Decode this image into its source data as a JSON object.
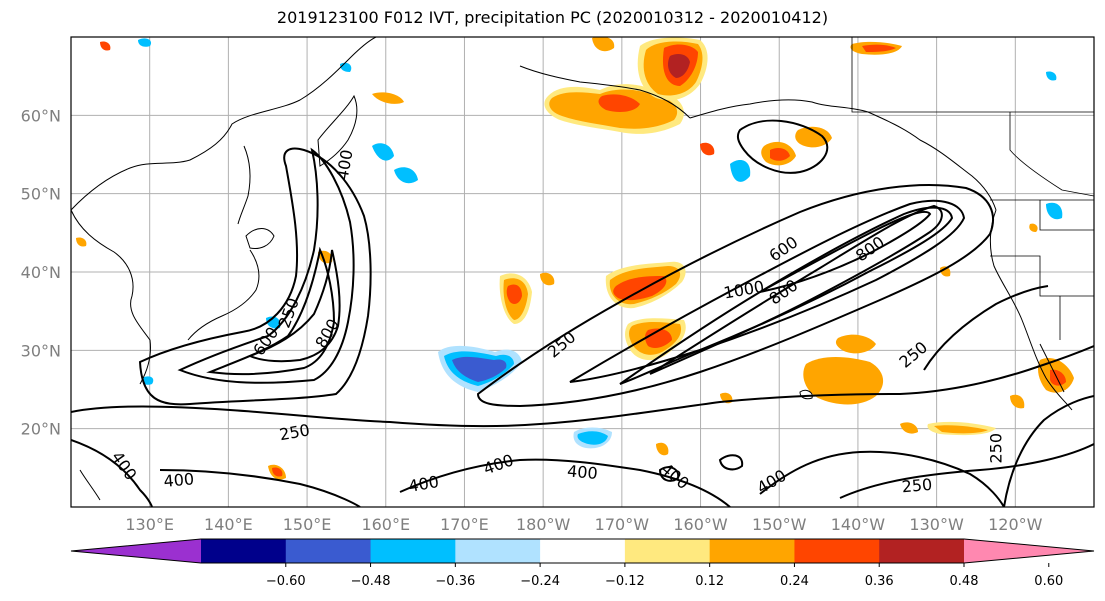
{
  "title": "2019123100 F012 IVT, precipitation PC (2020010312 - 2020010412)",
  "map": {
    "lon_range": [
      120,
      250
    ],
    "lat_range": [
      10,
      70
    ],
    "lon_ticks": [
      {
        "lon": 130,
        "label": "130°E"
      },
      {
        "lon": 140,
        "label": "140°E"
      },
      {
        "lon": 150,
        "label": "150°E"
      },
      {
        "lon": 160,
        "label": "160°E"
      },
      {
        "lon": 170,
        "label": "170°E"
      },
      {
        "lon": 180,
        "label": "180°W"
      },
      {
        "lon": 190,
        "label": "170°W"
      },
      {
        "lon": 200,
        "label": "160°W"
      },
      {
        "lon": 210,
        "label": "150°W"
      },
      {
        "lon": 220,
        "label": "140°W"
      },
      {
        "lon": 230,
        "label": "130°W"
      },
      {
        "lon": 240,
        "label": "120°W"
      }
    ],
    "lat_ticks": [
      {
        "lat": 20,
        "label": "20°N"
      },
      {
        "lat": 30,
        "label": "30°N"
      },
      {
        "lat": 40,
        "label": "40°N"
      },
      {
        "lat": 50,
        "label": "50°N"
      },
      {
        "lat": 60,
        "label": "60°N"
      }
    ],
    "contour_labels": [
      {
        "text": "250",
        "lon": 147.6,
        "lat": 34.8,
        "rot": -70
      },
      {
        "text": "600",
        "lon": 144.7,
        "lat": 31.2,
        "rot": -55
      },
      {
        "text": "800",
        "lon": 152.5,
        "lat": 32.2,
        "rot": -60
      },
      {
        "text": "400",
        "lon": 154.7,
        "lat": 53.7,
        "rot": -80
      },
      {
        "text": "250",
        "lon": 148.4,
        "lat": 19.6,
        "rot": -10
      },
      {
        "text": "400",
        "lon": 126.8,
        "lat": 15.3,
        "rot": 55
      },
      {
        "text": "400",
        "lon": 133.7,
        "lat": 13.5,
        "rot": -5
      },
      {
        "text": "400",
        "lon": 164.8,
        "lat": 13.0,
        "rot": -10
      },
      {
        "text": "400",
        "lon": 174.3,
        "lat": 15.5,
        "rot": -20
      },
      {
        "text": "400",
        "lon": 185.0,
        "lat": 14.5,
        "rot": 5
      },
      {
        "text": "400",
        "lon": 196.8,
        "lat": 14.0,
        "rot": 40
      },
      {
        "text": "400",
        "lon": 209.0,
        "lat": 13.3,
        "rot": -30
      },
      {
        "text": "250",
        "lon": 182.3,
        "lat": 30.8,
        "rot": -40
      },
      {
        "text": "600",
        "lon": 210.5,
        "lat": 43.0,
        "rot": -35
      },
      {
        "text": "1000",
        "lon": 205.5,
        "lat": 37.8,
        "rot": -10
      },
      {
        "text": "800",
        "lon": 210.5,
        "lat": 37.5,
        "rot": -35
      },
      {
        "text": "800",
        "lon": 221.5,
        "lat": 43.0,
        "rot": -35
      },
      {
        "text": "250",
        "lon": 227.0,
        "lat": 29.5,
        "rot": -40
      },
      {
        "text": "250",
        "lon": 227.5,
        "lat": 12.8,
        "rot": -5
      },
      {
        "text": "250",
        "lon": 237.5,
        "lat": 17.5,
        "rot": -90
      }
    ]
  },
  "colorbar": {
    "colors": [
      "#9b30d0",
      "#00008b",
      "#3a5bd0",
      "#00bfff",
      "#b0e2ff",
      "#ffffff",
      "#ffe97f",
      "#ffa500",
      "#ff4500",
      "#b22222",
      "#ff88b0"
    ],
    "tick_labels": [
      "-0.60",
      "-0.48",
      "-0.36",
      "-0.24",
      "-0.12",
      "0.12",
      "0.24",
      "0.36",
      "0.48",
      "0.60"
    ]
  }
}
